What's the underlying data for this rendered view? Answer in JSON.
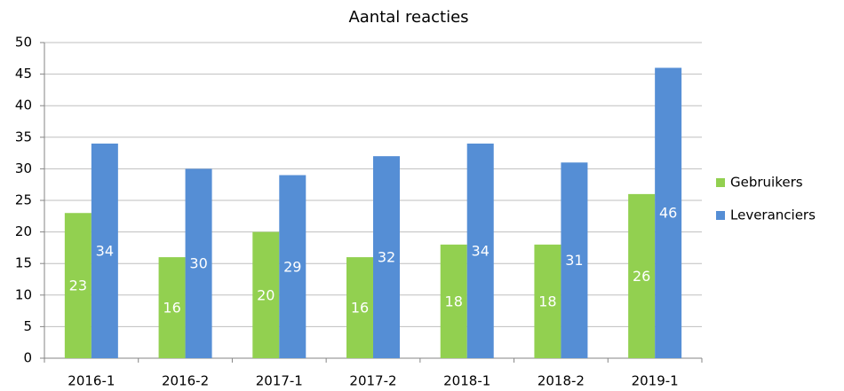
{
  "chart_data": {
    "type": "bar",
    "title": "Aantal reacties",
    "categories": [
      "2016-1",
      "2016-2",
      "2017-1",
      "2017-2",
      "2018-1",
      "2018-2",
      "2019-1"
    ],
    "series": [
      {
        "name": "Gebruikers",
        "color": "#92d050",
        "values": [
          23,
          16,
          20,
          16,
          18,
          18,
          26
        ]
      },
      {
        "name": "Leveranciers",
        "color": "#558ed5",
        "values": [
          34,
          30,
          29,
          32,
          34,
          31,
          46
        ]
      }
    ],
    "ylim": [
      0,
      50
    ],
    "yticks": [
      0,
      5,
      10,
      15,
      20,
      25,
      30,
      35,
      40,
      45,
      50
    ],
    "grid": true,
    "legend": "right"
  }
}
